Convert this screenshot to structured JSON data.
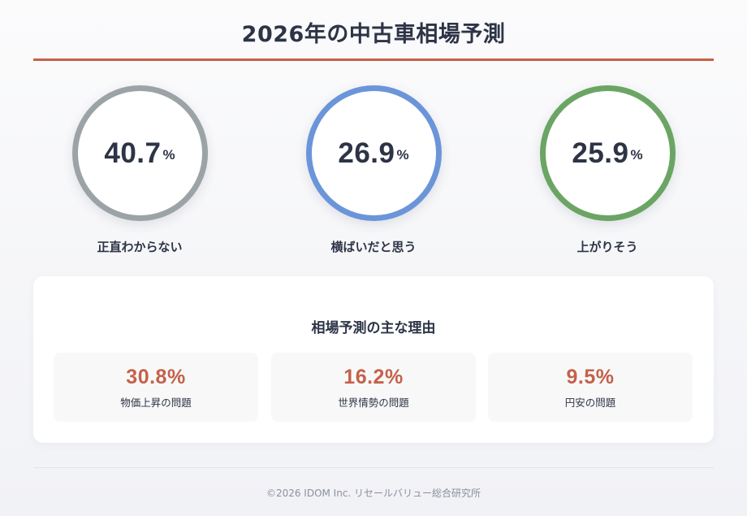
{
  "title": "2026年の中古車相場予測",
  "colors": {
    "accent": "#c4614a",
    "ring_gray": "#9ca3a6",
    "ring_blue": "#6b95d9",
    "ring_green": "#6aa564",
    "text": "#2d3446"
  },
  "stats": [
    {
      "value": "40.7",
      "unit": "%",
      "label": "正直わからない",
      "ring_color": "#9ca3a6"
    },
    {
      "value": "26.9",
      "unit": "%",
      "label": "横ばいだと思う",
      "ring_color": "#6b95d9"
    },
    {
      "value": "25.9",
      "unit": "%",
      "label": "上がりそう",
      "ring_color": "#6aa564"
    }
  ],
  "reasons": {
    "title": "相場予測の主な理由",
    "items": [
      {
        "value": "30.8%",
        "label": "物価上昇の問題"
      },
      {
        "value": "16.2%",
        "label": "世界情勢の問題"
      },
      {
        "value": "9.5%",
        "label": "円安の問題"
      }
    ]
  },
  "footer": "©2026 IDOM Inc. リセールバリュー総合研究所"
}
